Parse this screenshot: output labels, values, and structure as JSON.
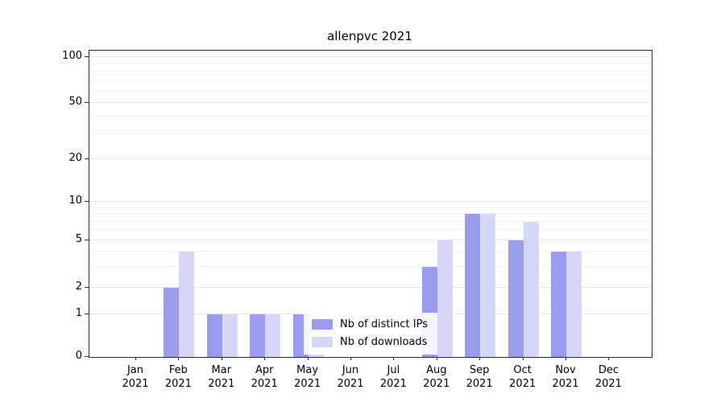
{
  "chart_data": {
    "type": "bar",
    "title": "allenpvc 2021",
    "categories": [
      "Jan 2021",
      "Feb 2021",
      "Mar 2021",
      "Apr 2021",
      "May 2021",
      "Jun 2021",
      "Jul 2021",
      "Aug 2021",
      "Sep 2021",
      "Oct 2021",
      "Nov 2021",
      "Dec 2021"
    ],
    "series": [
      {
        "name": "Nb of distinct IPs",
        "color": "#9a9cee",
        "values": [
          0,
          2,
          1,
          1,
          1,
          0,
          0,
          3,
          8,
          5,
          4,
          0
        ]
      },
      {
        "name": "Nb of downloads",
        "color": "#d6d7f8",
        "values": [
          0,
          4,
          1,
          1,
          1,
          0,
          0,
          5,
          8,
          7,
          4,
          0
        ]
      }
    ],
    "yticks": [
      0,
      1,
      2,
      5,
      10,
      20,
      50,
      100
    ],
    "minor_yticks": [
      3,
      4,
      6,
      7,
      8,
      9,
      30,
      40,
      60,
      70,
      80,
      90
    ],
    "scale": "symlog",
    "ylim": [
      0,
      100
    ],
    "grid": "horizontal",
    "legend_position": "lower center",
    "xlabel": "",
    "ylabel": ""
  }
}
